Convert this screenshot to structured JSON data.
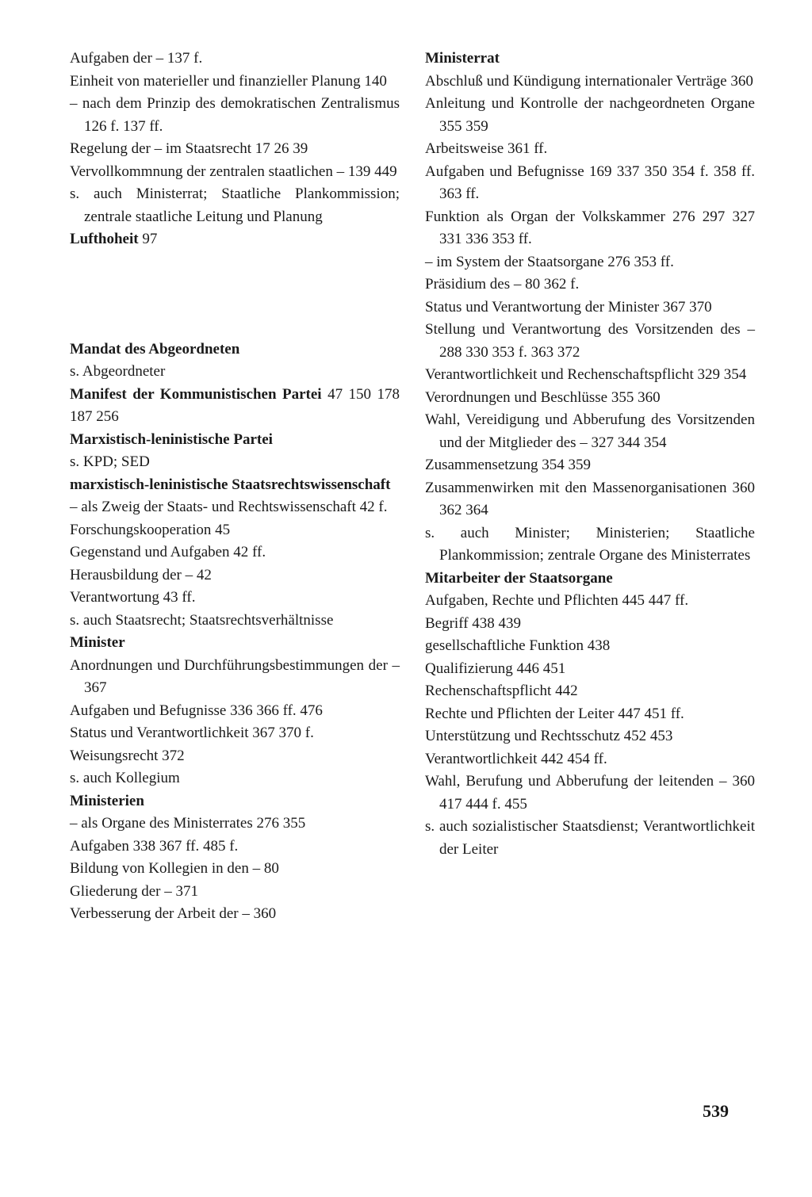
{
  "page_number": "539",
  "left_column": [
    {
      "cls": "sub",
      "text": "Aufgaben der –   137 f."
    },
    {
      "cls": "sub",
      "text": "Einheit von materieller und finanzieller Planung   140"
    },
    {
      "cls": "sub",
      "text": "– nach dem Prinzip des demokratischen Zentralismus   126 f. 137 ff."
    },
    {
      "cls": "sub",
      "text": "Regelung der – im Staatsrecht   17 26 39"
    },
    {
      "cls": "sub",
      "text": "Vervollkommnung der zentralen staatlichen –   139 449"
    },
    {
      "cls": "sub",
      "text": "s. auch Ministerrat; Staatliche Plan­kommission; zentrale staat­liche Leitung und Planung"
    },
    {
      "cls": "entry",
      "html": "<span class='bold'>Lufthoheit</span>   97"
    },
    {
      "cls": "gap",
      "text": ""
    },
    {
      "cls": "entry bold",
      "text": "Mandat des Abgeordneten"
    },
    {
      "cls": "sub",
      "text": "s. Abgeordneter"
    },
    {
      "cls": "entry",
      "html": "<span class='bold'>Manifest der Kommunistischen Partei</span>   47 150 178 187 256"
    },
    {
      "cls": "entry bold",
      "text": "Marxistisch-leninistische Partei"
    },
    {
      "cls": "sub",
      "text": "s. KPD; SED"
    },
    {
      "cls": "entry bold",
      "text": "marxistisch-leninistische Staatsrechts­wissenschaft"
    },
    {
      "cls": "sub",
      "text": "– als Zweig der Staats- und Rechts­wissenschaft   42 f."
    },
    {
      "cls": "sub",
      "text": "Forschungskooperation   45"
    },
    {
      "cls": "sub",
      "text": "Gegenstand und Aufgaben   42 ff."
    },
    {
      "cls": "sub",
      "text": "Herausbildung der –   42"
    },
    {
      "cls": "sub",
      "text": "Verantwortung   43 ff."
    },
    {
      "cls": "sub",
      "text": "s. auch Staatsrecht; Staatsrechtsver­hältnisse"
    },
    {
      "cls": "entry bold",
      "text": "Minister"
    },
    {
      "cls": "sub",
      "text": "Anordnungen und Durchführungs­bestimmungen der –   367"
    },
    {
      "cls": "sub",
      "text": "Aufgaben und Befugnisse  336 366 ff. 476"
    },
    {
      "cls": "sub",
      "text": "Status und Verantwortlichkeit   367 370 f."
    },
    {
      "cls": "sub",
      "text": "Weisungsrecht   372"
    },
    {
      "cls": "sub",
      "text": "s. auch Kollegium"
    },
    {
      "cls": "entry bold",
      "text": "Ministerien"
    },
    {
      "cls": "sub",
      "text": "– als Organe des Ministerrates   276 355"
    },
    {
      "cls": "sub",
      "text": "Aufgaben   338 367 ff. 485 f."
    },
    {
      "cls": "sub",
      "text": "Bildung von Kollegien in den –   80"
    },
    {
      "cls": "sub",
      "text": "Gliederung der –   371"
    },
    {
      "cls": "sub",
      "text": "Verbesserung der Arbeit der –   360"
    }
  ],
  "right_column": [
    {
      "cls": "entry bold",
      "text": "Ministerrat"
    },
    {
      "cls": "sub",
      "text": "Abschluß und Kündigung internationaler Verträge   360"
    },
    {
      "cls": "sub",
      "text": "Anleitung und Kontrolle der nachgeordneten Organe   355 359"
    },
    {
      "cls": "sub",
      "text": "Arbeitsweise   361 ff."
    },
    {
      "cls": "sub",
      "text": "Aufgaben und Befugnisse   169 337 350 354 f. 358 ff. 363 ff."
    },
    {
      "cls": "sub",
      "text": "Funktion als Organ der Volks­kammer   276   297   327   331   336 353 ff."
    },
    {
      "cls": "sub",
      "text": "– im System der Staatsorgane   276 353 ff."
    },
    {
      "cls": "sub",
      "text": "Präsidium des –   80 362 f."
    },
    {
      "cls": "sub",
      "text": "Status und Verantwortung der Minister   367 370"
    },
    {
      "cls": "sub",
      "text": "Stellung und Verantwortung des Vor­sitzenden des –   288 330 353 f. 363 372"
    },
    {
      "cls": "sub",
      "text": "Verantwortlichkeit und Rechen­schaftspflicht   329 354"
    },
    {
      "cls": "sub",
      "text": "Verordnungen und Beschlüsse   355 360"
    },
    {
      "cls": "sub",
      "text": "Wahl, Vereidigung und Abberufung des Vorsitzenden und der Mitglieder des –   327 344 354"
    },
    {
      "cls": "sub",
      "text": "Zusammensetzung   354 359"
    },
    {
      "cls": "sub",
      "text": "Zusammenwirken mit den Massen­organisationen   360 362 364"
    },
    {
      "cls": "sub",
      "text": "s. auch Minister; Ministerien; Staatliche Plankommission; zentrale Organe des Minister­rates"
    },
    {
      "cls": "entry bold",
      "text": "Mitarbeiter der Staatsorgane"
    },
    {
      "cls": "sub",
      "text": "Aufgaben, Rechte und Pflichten   445 447 ff."
    },
    {
      "cls": "sub",
      "text": "Begriff   438 439"
    },
    {
      "cls": "sub",
      "text": "gesellschaftliche Funktion   438"
    },
    {
      "cls": "sub",
      "text": "Qualifizierung   446 451"
    },
    {
      "cls": "sub",
      "text": "Rechenschaftspflicht   442"
    },
    {
      "cls": "sub",
      "text": "Rechte und Pflichten der Leiter   447 451 ff."
    },
    {
      "cls": "sub",
      "text": "Unterstützung und Rechtsschutz   452 453"
    },
    {
      "cls": "sub",
      "text": "Verantwortlichkeit   442 454 ff."
    },
    {
      "cls": "sub",
      "text": "Wahl, Berufung und Abberufung der leitenden –   360 417 444 f. 455"
    },
    {
      "cls": "sub",
      "text": "s. auch sozialistischer Staatsdienst; Verantwortlichkeit der Leiter"
    }
  ]
}
